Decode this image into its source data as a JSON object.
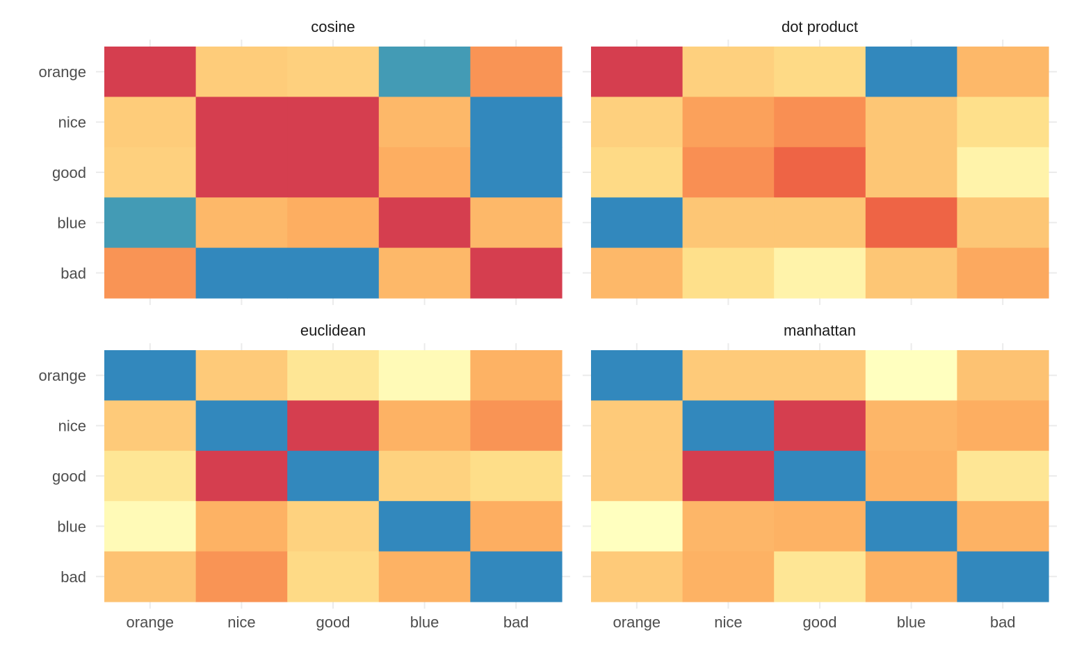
{
  "chart_data": {
    "type": "heatmap",
    "categories": [
      "orange",
      "nice",
      "good",
      "blue",
      "bad"
    ],
    "row_order_top_to_bottom": [
      "orange",
      "nice",
      "good",
      "blue",
      "bad"
    ],
    "color_palette": [
      "#3288bd",
      "#66c2a5",
      "#abdda4",
      "#e6f598",
      "#ffffbf",
      "#fee08b",
      "#fdae61",
      "#f46d43",
      "#d53e4f"
    ],
    "legend": "none",
    "grid": true,
    "panels": [
      {
        "title": "cosine",
        "values": [
          [
            1.0,
            0.35,
            0.33,
            -0.92,
            0.6
          ],
          [
            0.35,
            1.0,
            1.0,
            0.45,
            -1.0
          ],
          [
            0.33,
            1.0,
            1.0,
            0.5,
            -1.0
          ],
          [
            -0.92,
            0.45,
            0.5,
            1.0,
            0.45
          ],
          [
            0.6,
            -1.0,
            -1.0,
            0.45,
            1.0
          ]
        ]
      },
      {
        "title": "dot product",
        "values": [
          [
            1.0,
            0.33,
            0.28,
            -1.0,
            0.45
          ],
          [
            0.33,
            0.55,
            0.62,
            0.38,
            0.25
          ],
          [
            0.28,
            0.62,
            0.8,
            0.38,
            0.1
          ],
          [
            -1.0,
            0.38,
            0.38,
            0.8,
            0.38
          ],
          [
            0.45,
            0.25,
            0.1,
            0.38,
            0.52
          ]
        ]
      },
      {
        "title": "euclidean",
        "values": [
          [
            0.0,
            0.68,
            0.6,
            0.52,
            0.74
          ],
          [
            0.68,
            0.0,
            1.0,
            0.74,
            0.8
          ],
          [
            0.6,
            1.0,
            0.0,
            0.66,
            0.63
          ],
          [
            0.52,
            0.74,
            0.66,
            0.0,
            0.75
          ],
          [
            0.7,
            0.8,
            0.64,
            0.74,
            0.0
          ]
        ]
      },
      {
        "title": "manhattan",
        "values": [
          [
            0.0,
            0.68,
            0.68,
            0.5,
            0.7
          ],
          [
            0.68,
            0.0,
            1.0,
            0.73,
            0.75
          ],
          [
            0.68,
            1.0,
            0.0,
            0.74,
            0.6
          ],
          [
            0.5,
            0.73,
            0.74,
            0.0,
            0.74
          ],
          [
            0.68,
            0.74,
            0.6,
            0.74,
            0.0
          ]
        ]
      }
    ]
  }
}
